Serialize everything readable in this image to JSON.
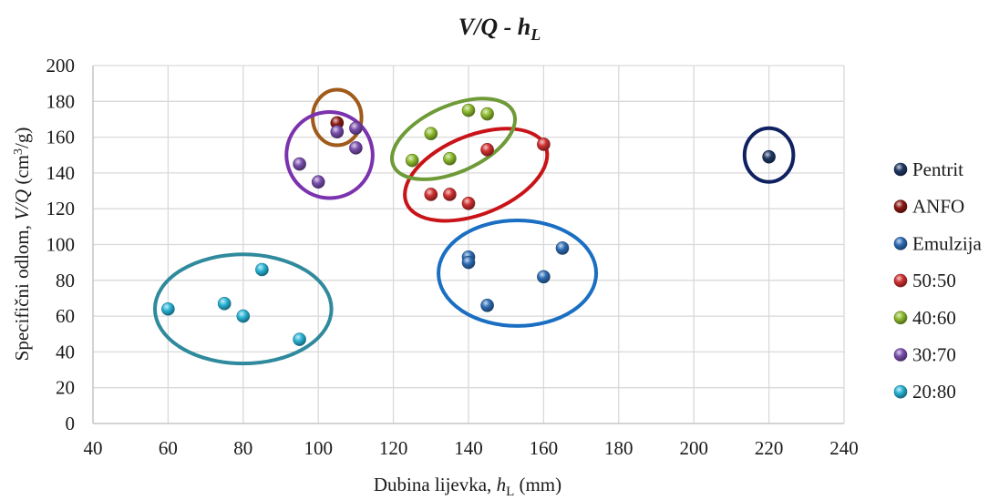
{
  "chart_data": {
    "type": "scatter",
    "title": {
      "main": "V/Q",
      "sep": " - ",
      "var": "h",
      "sub": "L"
    },
    "xlabel": {
      "pre": "Dubina lijevka, ",
      "var": "h",
      "sub": "L",
      "post": " (mm)"
    },
    "ylabel": {
      "pre": "Specifični odlom, ",
      "var": "V/Q",
      "post": " (cm",
      "sup": "3",
      "end": "/g)"
    },
    "xlim": [
      40,
      240
    ],
    "ylim": [
      0,
      200
    ],
    "xticks": [
      40,
      60,
      80,
      100,
      120,
      140,
      160,
      180,
      200,
      220,
      240
    ],
    "yticks": [
      0,
      20,
      40,
      60,
      80,
      100,
      120,
      140,
      160,
      180,
      200
    ],
    "grid": true,
    "legend_position": "right",
    "series": [
      {
        "name": "Pentrit",
        "color": "#1f3864",
        "points": [
          [
            220,
            149
          ]
        ]
      },
      {
        "name": "ANFO",
        "color": "#8b1a12",
        "points": [
          [
            105,
            168
          ]
        ]
      },
      {
        "name": "Emulzija",
        "color": "#2e6db5",
        "points": [
          [
            140,
            93
          ],
          [
            140,
            90
          ],
          [
            145,
            66
          ],
          [
            160,
            82
          ],
          [
            165,
            98
          ]
        ]
      },
      {
        "name": "50:50",
        "color": "#d03030",
        "points": [
          [
            130,
            128
          ],
          [
            135,
            128
          ],
          [
            140,
            123
          ],
          [
            145,
            153
          ],
          [
            160,
            156
          ]
        ]
      },
      {
        "name": "40:60",
        "color": "#8dbb2e",
        "points": [
          [
            125,
            147
          ],
          [
            130,
            162
          ],
          [
            135,
            148
          ],
          [
            140,
            175
          ],
          [
            145,
            173
          ]
        ]
      },
      {
        "name": "30:70",
        "color": "#7a4fae",
        "points": [
          [
            95,
            145
          ],
          [
            100,
            135
          ],
          [
            105,
            163
          ],
          [
            110,
            154
          ],
          [
            110,
            165
          ]
        ]
      },
      {
        "name": "20:80",
        "color": "#28b4d6",
        "points": [
          [
            60,
            64
          ],
          [
            75,
            67
          ],
          [
            80,
            60
          ],
          [
            85,
            86
          ],
          [
            95,
            47
          ]
        ]
      }
    ],
    "groups": [
      {
        "name": "Pentrit",
        "color": "#0f2160",
        "cx": 220,
        "cy": 150,
        "rx": 6.5,
        "ry": 15
      },
      {
        "name": "ANFO",
        "color": "#a05a1a",
        "cx": 105,
        "cy": 171,
        "rx": 6.5,
        "ry": 15.5
      },
      {
        "name": "Emulzija",
        "color": "#1a6fc2",
        "cx": 153,
        "cy": 84,
        "rx": 21,
        "ry": 29.5
      },
      {
        "name": "50:50",
        "color": "#c81418",
        "cx": 142,
        "cy": 139,
        "rx": 20,
        "ry": 22,
        "rot": -22
      },
      {
        "name": "40:60",
        "color": "#6e9a38",
        "cx": 136,
        "cy": 159,
        "rx": 17.5,
        "ry": 18.5,
        "rot": -24
      },
      {
        "name": "30:70",
        "color": "#7b32ae",
        "cx": 103,
        "cy": 150,
        "rx": 11.5,
        "ry": 24,
        "rot": 38
      },
      {
        "name": "20:80",
        "color": "#2e8a9c",
        "cx": 80,
        "cy": 64,
        "rx": 23.5,
        "ry": 30.5
      }
    ]
  }
}
